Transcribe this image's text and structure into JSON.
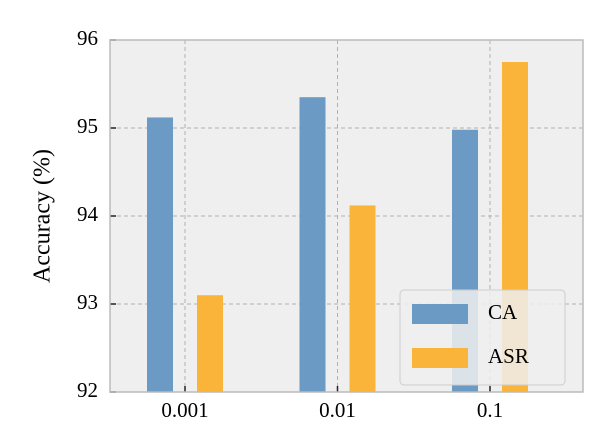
{
  "chart_data": {
    "type": "bar",
    "y_label": "Accuracy (%)",
    "categories": [
      "0.001",
      "0.01",
      "0.1"
    ],
    "series": [
      {
        "name": "CA",
        "color": "#6b9ac4",
        "values": [
          95.12,
          95.35,
          94.98
        ]
      },
      {
        "name": "ASR",
        "color": "#fbb43a",
        "values": [
          93.1,
          94.12,
          95.75
        ]
      }
    ],
    "ylim": [
      92,
      96
    ],
    "yticks": [
      92,
      93,
      94,
      95,
      96
    ],
    "grid": true,
    "legend": "lower right"
  }
}
